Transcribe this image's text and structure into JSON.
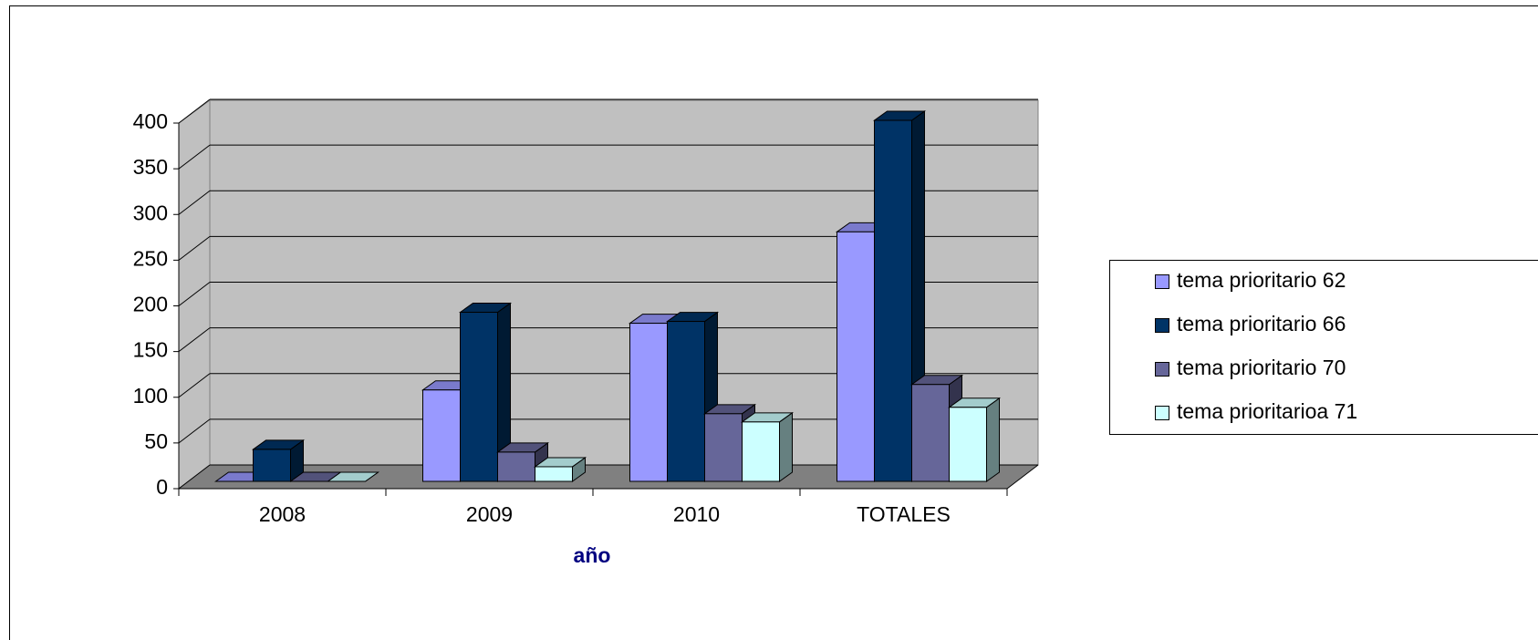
{
  "chart_data": {
    "type": "bar",
    "categories": [
      "2008",
      "2009",
      "2010",
      "TOTALES"
    ],
    "series": [
      {
        "name": "tema prioritario 62",
        "color": "#9999ff",
        "values": [
          0,
          100,
          173,
          273
        ]
      },
      {
        "name": "tema prioritario 66",
        "color": "#003366",
        "values": [
          35,
          185,
          175,
          395
        ]
      },
      {
        "name": "tema prioritario 70",
        "color": "#666699",
        "values": [
          0,
          32,
          74,
          106
        ]
      },
      {
        "name": "tema prioritarioa 71",
        "color": "#ccffff",
        "values": [
          0,
          16,
          65,
          81
        ]
      }
    ],
    "x_label": "año",
    "ylim": [
      0,
      400
    ],
    "yticks": [
      0,
      50,
      100,
      150,
      200,
      250,
      300,
      350,
      400
    ],
    "grid": true,
    "legend": "right"
  }
}
